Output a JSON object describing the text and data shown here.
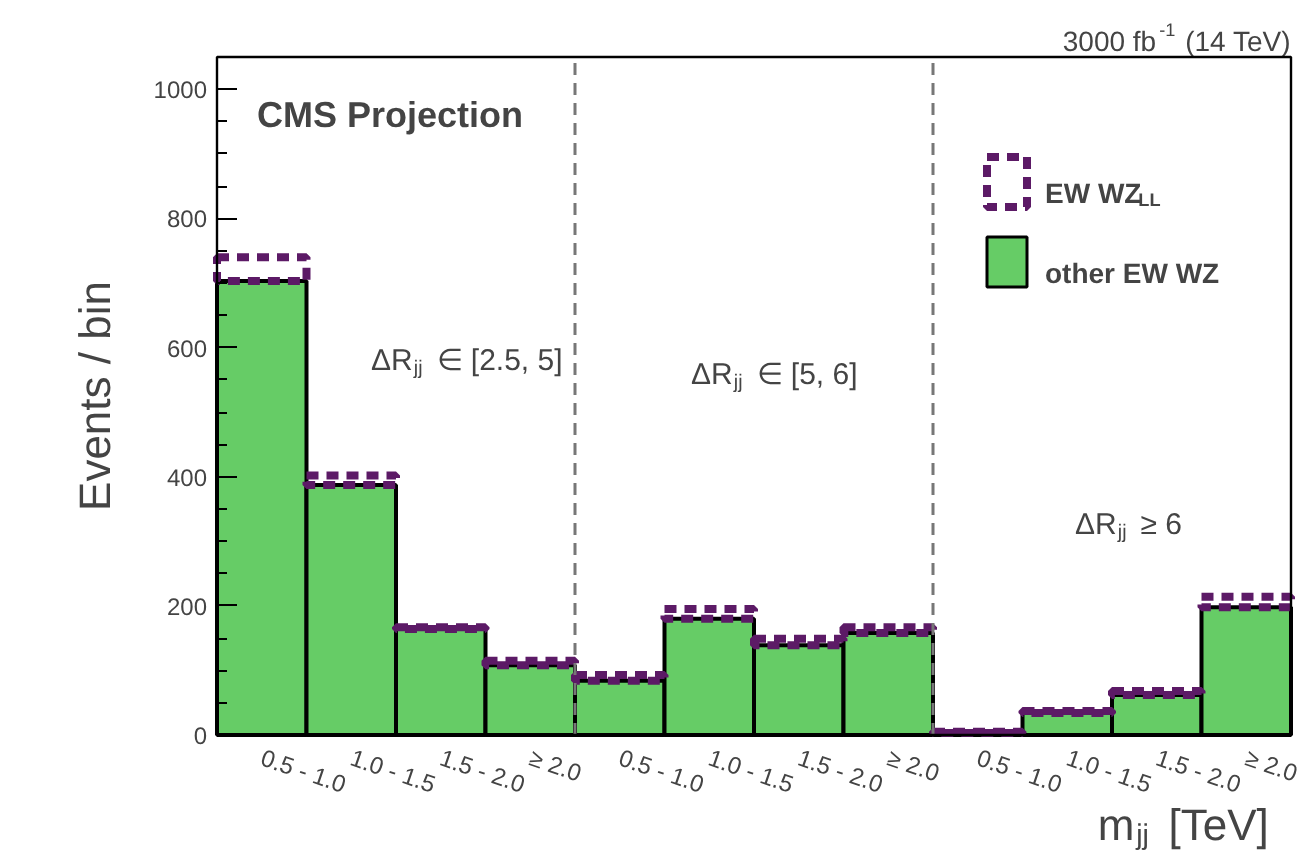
{
  "chart_data": {
    "type": "bar",
    "title": "CMS Projection",
    "subtitle": "3000 fb$^{-1}$ (14 TeV)",
    "xlabel": "m$_{jj}$ [TeV]",
    "ylabel": "Events / bin",
    "categories": [
      "0.5 - 1.0",
      "1.0 - 1.5",
      "1.5 - 2.0",
      "≥ 2.0",
      "0.5 - 1.0",
      "1.0 - 1.5",
      "1.5 - 2.0",
      "≥ 2.0",
      "0.5 - 1.0",
      "1.0 - 1.5",
      "1.5 - 2.0",
      "≥ 2.0"
    ],
    "stacked": true,
    "series": [
      {
        "name": "other EW WZ",
        "color": "#66cc66",
        "line_style": "solid",
        "values": [
          703,
          387,
          164,
          108,
          84,
          180,
          139,
          158,
          3,
          34,
          62,
          198
        ]
      },
      {
        "name": "EW WZ$_{LL}$",
        "color": "#5c1a66",
        "line_style": "dashed",
        "values": [
          37,
          15,
          3,
          7,
          9,
          15,
          10,
          9,
          2,
          3,
          6,
          16
        ]
      }
    ],
    "ylim": [
      0,
      1050
    ],
    "yticks": [
      0,
      200,
      400,
      600,
      800,
      1000
    ],
    "grid": false,
    "legend": "top right",
    "annotations": [
      "ΔR$_{jj}$ ∈ [2.5, 5]",
      "ΔR$_{jj}$ ∈ [5, 6]",
      "ΔR$_{jj}$ ≥ 6"
    ]
  }
}
